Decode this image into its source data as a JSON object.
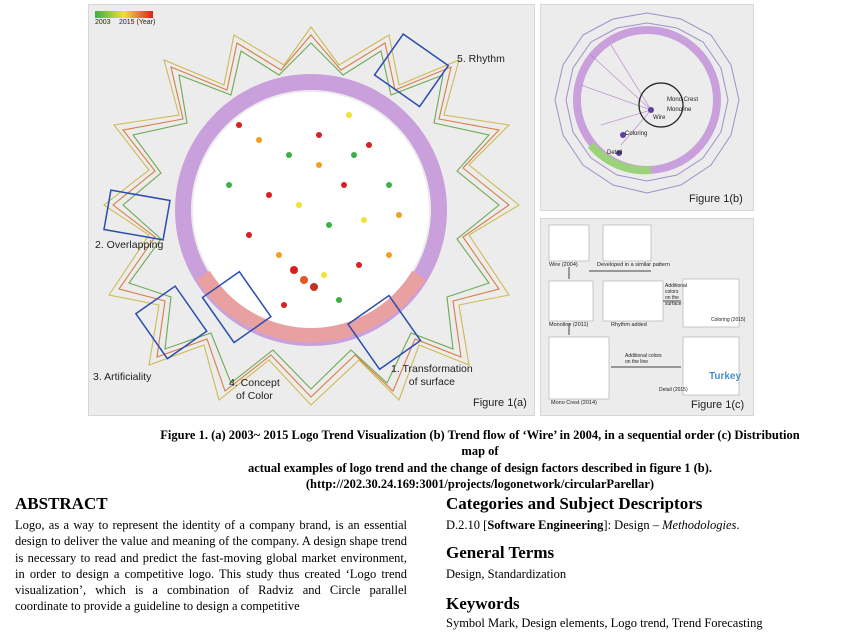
{
  "figure": {
    "panel_a": {
      "legend_start": "2003",
      "legend_end": "2015 (Year)",
      "annotations": [
        "5. Rhythm",
        "2. Overlapping",
        "3. Artificiality",
        "4. Concept\nof Color",
        "1. Transformation\nof surface"
      ],
      "label": "Figure 1(a)"
    },
    "panel_b": {
      "label": "Figure 1(b)",
      "node_labels": [
        "Mono Crest",
        "Monoline",
        "Coloring",
        "Detail",
        "Wire"
      ]
    },
    "panel_c": {
      "label": "Figure 1(c)",
      "steps": [
        "Wire (2004)",
        "Developed in a similar pattern",
        "Monoline (2011)",
        "Rhythm added",
        "Additional colors on the surface",
        "Coloring (2015)",
        "Mono Crest (2014)",
        "Additional colors on the line",
        "Detail (2015)"
      ],
      "sample_text": "Turkey"
    }
  },
  "caption": {
    "line1": "Figure 1. (a) 2003~ 2015 Logo Trend Visualization (b) Trend flow of ‘Wire’ in 2004, in a sequential order (c) Distribution map of",
    "line2": "actual examples of logo trend and the change of design factors described in figure 1 (b).",
    "line3": "(http://202.30.24.169:3001/projects/logonetwork/circularParellar)"
  },
  "abstract": {
    "title": "ABSTRACT",
    "text": "Logo, as a way to represent the identity of a company brand, is an essential design to deliver the value and meaning of the company. A design shape trend is necessary to read and predict the fast-moving global market environment, in order to design a competitive logo. This study thus created ‘Logo trend visualization’, which is a combination of Radviz and Circle parallel coordinate to provide a guideline to design a competitive"
  },
  "categories": {
    "title": "Categories and Subject Descriptors",
    "code": "D.2.10 [",
    "bold": "Software Engineering",
    "rest": "]: Design – ",
    "italic": "Methodologies",
    "end": "."
  },
  "general_terms": {
    "title": "General Terms",
    "text": "Design, Standardization"
  },
  "keywords": {
    "title": "Keywords",
    "text": "Symbol Mark, Design elements, Logo trend, Trend Forecasting"
  },
  "colors": {
    "ring_purple": "#c9a0dc",
    "ring_red": "#e8a0a0",
    "box_blue": "#2a4db0"
  }
}
